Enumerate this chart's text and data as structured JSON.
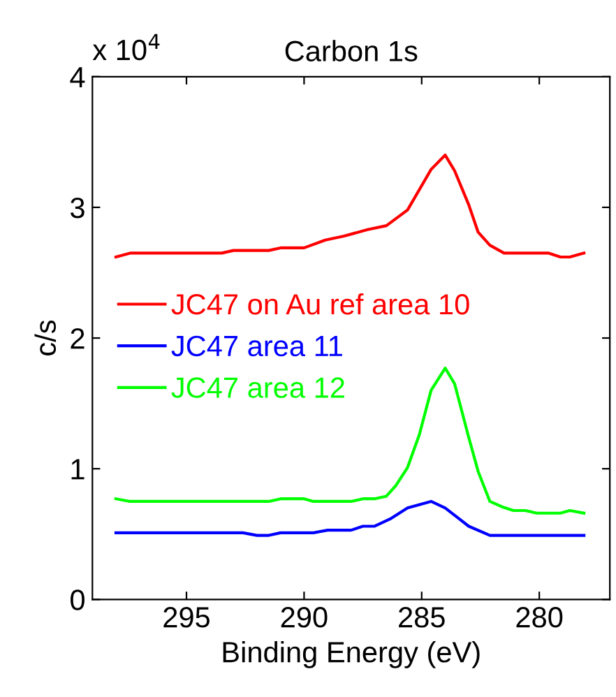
{
  "chart_data": {
    "type": "line",
    "title": "Carbon 1s",
    "xlabel": "Binding Energy (eV)",
    "ylabel": "c/s",
    "annotations": [
      "x 10$^{4}$"
    ],
    "xlim": [
      299,
      277
    ],
    "xticks": [
      295,
      290,
      285,
      280
    ],
    "ylim": [
      0,
      4
    ],
    "yticks": [
      0,
      1,
      2,
      3,
      4
    ],
    "grid": false,
    "legend": "left",
    "line_style": "solid",
    "marker": "none",
    "series": [
      {
        "name": "JC47 on Au ref area 10",
        "color": "#ff0000",
        "x": [
          298.0,
          297.4,
          293.5,
          293.0,
          291.5,
          291.0,
          290.0,
          289.1,
          288.3,
          287.3,
          286.5,
          285.6,
          284.6,
          284.0,
          283.6,
          283.0,
          282.6,
          282.1,
          281.5,
          279.6,
          279.1,
          278.7,
          278.1
        ],
        "values": [
          2.62,
          2.65,
          2.65,
          2.67,
          2.67,
          2.69,
          2.69,
          2.75,
          2.78,
          2.83,
          2.86,
          2.98,
          3.29,
          3.4,
          3.28,
          3.02,
          2.81,
          2.71,
          2.65,
          2.65,
          2.62,
          2.62,
          2.65
        ]
      },
      {
        "name": "JC47 area 11",
        "color": "#0000ff",
        "x": [
          298.0,
          292.6,
          292.0,
          291.5,
          291.0,
          289.6,
          289.0,
          288.0,
          287.5,
          287.0,
          286.3,
          285.6,
          284.6,
          284.0,
          283.5,
          283.0,
          282.1,
          278.1
        ],
        "values": [
          0.51,
          0.51,
          0.49,
          0.49,
          0.51,
          0.51,
          0.53,
          0.53,
          0.56,
          0.56,
          0.62,
          0.7,
          0.75,
          0.7,
          0.63,
          0.56,
          0.49,
          0.49
        ]
      },
      {
        "name": "JC47 area 12",
        "color": "#00ff00",
        "x": [
          298.0,
          297.4,
          291.5,
          291.0,
          290.0,
          289.6,
          288.0,
          287.5,
          287.0,
          286.5,
          286.1,
          285.6,
          285.1,
          284.6,
          284.0,
          283.6,
          283.0,
          282.6,
          282.1,
          281.6,
          281.1,
          280.6,
          280.1,
          279.1,
          278.7,
          278.1
        ],
        "values": [
          0.77,
          0.75,
          0.75,
          0.77,
          0.77,
          0.75,
          0.75,
          0.77,
          0.77,
          0.79,
          0.87,
          1.01,
          1.26,
          1.6,
          1.77,
          1.65,
          1.24,
          0.98,
          0.75,
          0.71,
          0.68,
          0.68,
          0.66,
          0.66,
          0.68,
          0.66
        ]
      }
    ]
  }
}
